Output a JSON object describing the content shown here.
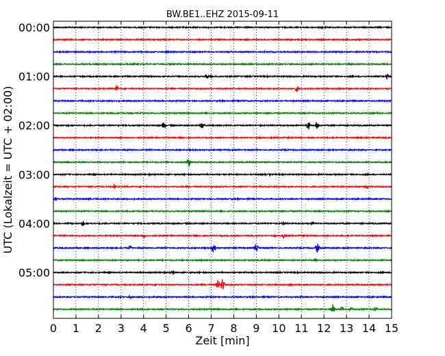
{
  "chart_data": {
    "type": "line",
    "title": "BW.BE1..EHZ 2015-09-11",
    "xlabel": "Zeit  [min]",
    "ylabel": "UTC (Lokalzeit = UTC + 02:00)",
    "xlim": [
      0,
      15
    ],
    "x_ticks": [
      "0",
      "1",
      "2",
      "3",
      "4",
      "5",
      "6",
      "7",
      "8",
      "9",
      "10",
      "11",
      "12",
      "13",
      "14",
      "15"
    ],
    "y_ticks": [
      "00:00",
      "01:00",
      "02:00",
      "03:00",
      "04:00",
      "05:00"
    ],
    "grid": "vertical dotted",
    "trace_colors": [
      "#000000",
      "#ff0000",
      "#0000ff",
      "#008000"
    ],
    "traces": [
      {
        "start": "00:00",
        "events": [
          {
            "t": 11.9,
            "a": 2
          }
        ]
      },
      {
        "start": "00:15",
        "events": []
      },
      {
        "start": "00:30",
        "events": []
      },
      {
        "start": "00:45",
        "events": []
      },
      {
        "start": "01:00",
        "events": [
          {
            "t": 6.8,
            "a": 4
          },
          {
            "t": 7.0,
            "a": 3
          },
          {
            "t": 14.8,
            "a": 4
          }
        ]
      },
      {
        "start": "01:15",
        "events": [
          {
            "t": 2.8,
            "a": 5
          },
          {
            "t": 10.8,
            "a": 5
          },
          {
            "t": 12.7,
            "a": 3
          }
        ]
      },
      {
        "start": "01:30",
        "events": []
      },
      {
        "start": "01:45",
        "events": []
      },
      {
        "start": "02:00",
        "events": [
          {
            "t": 4.9,
            "a": 6
          },
          {
            "t": 6.6,
            "a": 7
          },
          {
            "t": 9.2,
            "a": 2
          },
          {
            "t": 11.3,
            "a": 8
          },
          {
            "t": 11.7,
            "a": 7
          }
        ]
      },
      {
        "start": "02:15",
        "events": []
      },
      {
        "start": "02:30",
        "events": []
      },
      {
        "start": "02:45",
        "events": [
          {
            "t": 6.0,
            "a": 7
          }
        ]
      },
      {
        "start": "03:00",
        "events": [
          {
            "t": 9.6,
            "a": 2
          }
        ]
      },
      {
        "start": "03:15",
        "events": [
          {
            "t": 2.7,
            "a": 4
          },
          {
            "t": 13.9,
            "a": 3
          }
        ]
      },
      {
        "start": "03:30",
        "events": [
          {
            "t": 0.1,
            "a": 4
          },
          {
            "t": 1.6,
            "a": 2
          }
        ]
      },
      {
        "start": "03:45",
        "events": [
          {
            "t": 14.0,
            "a": 2
          }
        ]
      },
      {
        "start": "04:00",
        "events": [
          {
            "t": 1.3,
            "a": 5
          },
          {
            "t": 10.2,
            "a": 3
          },
          {
            "t": 11.5,
            "a": 3
          }
        ]
      },
      {
        "start": "04:15",
        "events": [
          {
            "t": 4.0,
            "a": 4
          },
          {
            "t": 10.2,
            "a": 4
          }
        ]
      },
      {
        "start": "04:30",
        "events": [
          {
            "t": 3.4,
            "a": 4
          },
          {
            "t": 7.1,
            "a": 9
          },
          {
            "t": 9.0,
            "a": 8
          },
          {
            "t": 11.7,
            "a": 8
          }
        ]
      },
      {
        "start": "04:45",
        "events": [
          {
            "t": 11.6,
            "a": 3
          }
        ]
      },
      {
        "start": "05:00",
        "events": [
          {
            "t": 5.3,
            "a": 3
          }
        ]
      },
      {
        "start": "05:15",
        "events": [
          {
            "t": 7.3,
            "a": 8
          },
          {
            "t": 7.5,
            "a": 11
          },
          {
            "t": 10.5,
            "a": 3
          }
        ]
      },
      {
        "start": "05:30",
        "events": [
          {
            "t": 3.4,
            "a": 3
          },
          {
            "t": 11.0,
            "a": 2
          }
        ]
      },
      {
        "start": "05:45",
        "events": [
          {
            "t": 12.4,
            "a": 8
          },
          {
            "t": 12.8,
            "a": 4
          },
          {
            "t": 13.2,
            "a": 4
          },
          {
            "t": 14.3,
            "a": 4
          }
        ]
      }
    ]
  }
}
